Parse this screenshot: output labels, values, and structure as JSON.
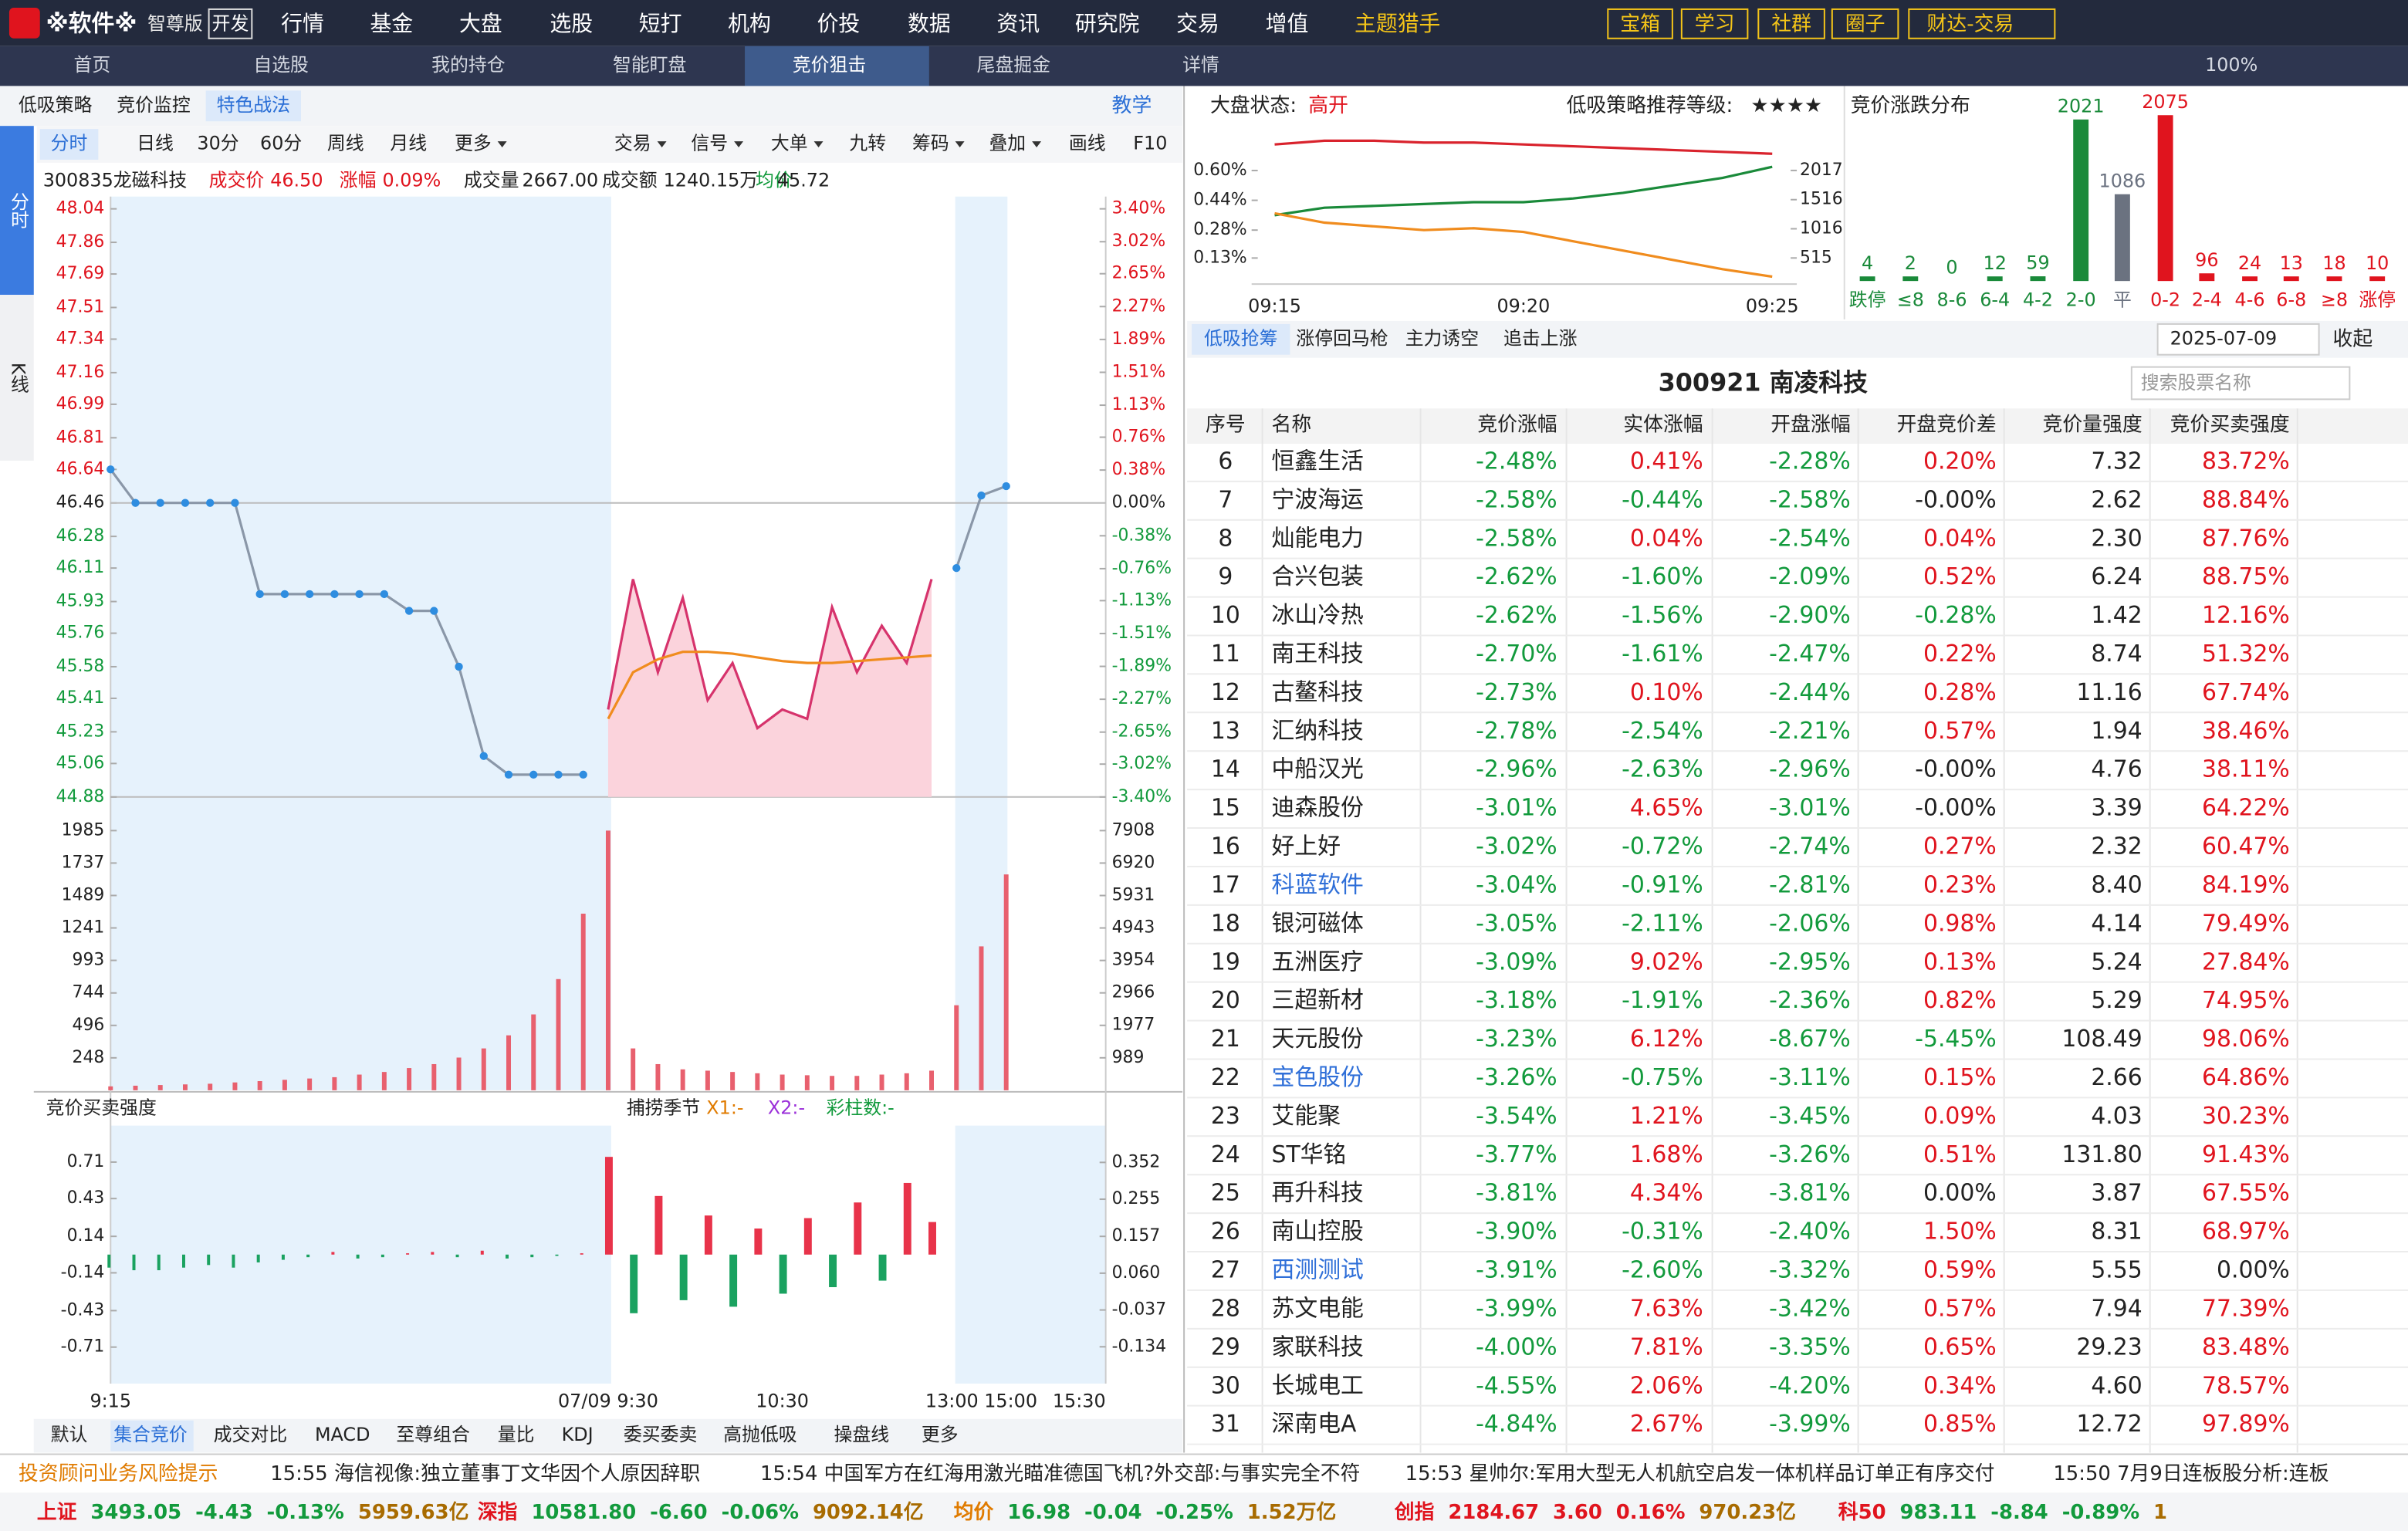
{
  "menu": {
    "logo": "※软件※",
    "edition": "智尊版",
    "mode": "开发",
    "items": [
      "行情",
      "基金",
      "大盘",
      "选股",
      "短打",
      "机构",
      "价投",
      "数据",
      "资讯",
      "研究院",
      "交易",
      "增值",
      "主题猎手"
    ],
    "tools": [
      "宝箱",
      "学习",
      "社群",
      "圈子",
      "财达-交易"
    ]
  },
  "tabs": {
    "items": [
      "首页",
      "自选股",
      "我的持仓",
      "智能盯盘",
      "竞价狙击",
      "尾盘掘金",
      "详情"
    ],
    "zoom": "100%"
  },
  "left": {
    "subtabs": [
      "低吸策略",
      "竞价监控",
      "特色战法"
    ],
    "teach": "教学",
    "side": [
      "分时",
      "K线"
    ],
    "periods": [
      "分时",
      "日线",
      "30分",
      "60分",
      "周线",
      "月线",
      "更多"
    ],
    "tools": [
      "交易",
      "信号",
      "大单",
      "九转",
      "筹码",
      "叠加",
      "画线",
      "F10"
    ],
    "quote": {
      "code_name": "300835龙磁科技",
      "price_label": "成交价",
      "price": "46.50",
      "chg_label": "涨幅",
      "chg": "0.09%",
      "vol_label": "成交量",
      "vol": "2667.00",
      "amt_label": "成交额",
      "amt": "1240.15万",
      "avg_label": "均价",
      "avg": "45.72"
    },
    "indicator_tabs": [
      "默认",
      "集合竞价",
      "成交对比",
      "MACD",
      "至尊组合",
      "量比",
      "KDJ",
      "委买委卖",
      "高抛低吸",
      "操盘线",
      "更多"
    ]
  },
  "chart_data": [
    {
      "type": "line",
      "categories": [
        "9:15",
        null,
        null,
        null,
        null,
        null,
        null,
        null,
        null,
        null,
        null,
        null,
        null,
        null,
        null,
        null,
        null,
        null,
        null,
        null,
        "07/09 9:30",
        null,
        null,
        null,
        null,
        null,
        null,
        "10:30",
        null,
        null,
        null,
        null,
        null,
        null,
        null,
        "13:00 15:00",
        null,
        null,
        null,
        null,
        "15:30"
      ],
      "series": [
        {
          "name": "集合竞价",
          "color": "#2e8de0",
          "values": [
            46.64,
            46.46,
            46.46,
            46.46,
            46.46,
            46.46,
            45.97,
            45.97,
            45.97,
            45.97,
            45.97,
            45.97,
            45.88,
            45.88,
            45.58,
            45.1,
            45.0,
            45.0,
            45.0,
            45.0,
            null,
            null,
            null,
            null,
            null,
            null,
            null,
            null,
            null,
            null,
            null,
            null,
            null,
            null,
            46.11,
            46.5,
            46.55,
            null,
            null,
            null,
            null
          ]
        },
        {
          "name": "价格",
          "color": "#d6336c",
          "values": [
            null,
            null,
            null,
            null,
            null,
            null,
            null,
            null,
            null,
            null,
            null,
            null,
            null,
            null,
            null,
            null,
            null,
            null,
            null,
            null,
            45.35,
            46.05,
            45.55,
            45.95,
            45.4,
            45.6,
            45.25,
            45.35,
            45.3,
            45.9,
            45.55,
            45.8,
            45.6,
            46.05,
            null,
            null,
            null,
            null,
            null,
            null,
            null
          ]
        },
        {
          "name": "均价",
          "color": "#f08c1e",
          "values": [
            null,
            null,
            null,
            null,
            null,
            null,
            null,
            null,
            null,
            null,
            null,
            null,
            null,
            null,
            null,
            null,
            null,
            null,
            null,
            null,
            45.3,
            45.55,
            45.62,
            45.66,
            45.66,
            45.65,
            45.63,
            45.61,
            45.6,
            45.6,
            45.61,
            45.62,
            45.63,
            45.64,
            null,
            null,
            null,
            null,
            null,
            null,
            null
          ]
        }
      ],
      "ylim": [
        44.88,
        48.04
      ],
      "yticks": [
        48.04,
        47.86,
        47.69,
        47.51,
        47.34,
        47.16,
        46.99,
        46.81,
        46.64,
        46.46,
        46.28,
        46.11,
        45.93,
        45.76,
        45.58,
        45.41,
        45.23,
        45.06,
        44.88
      ],
      "y2lim": [
        -3.4,
        3.4
      ],
      "y2ticks": [
        {
          "value": 3.4,
          "label": "3.40%"
        },
        {
          "value": 3.02,
          "label": "3.02%"
        },
        {
          "value": 2.65,
          "label": "2.65%"
        },
        {
          "value": 2.27,
          "label": "2.27%"
        },
        {
          "value": 1.89,
          "label": "1.89%"
        },
        {
          "value": 1.51,
          "label": "1.51%"
        },
        {
          "value": 1.13,
          "label": "1.13%"
        },
        {
          "value": 0.76,
          "label": "0.76%"
        },
        {
          "value": 0.38,
          "label": "0.38%"
        },
        {
          "value": 0,
          "label": "0.00%"
        },
        {
          "value": -0.38,
          "label": "-0.38%"
        },
        {
          "value": -0.76,
          "label": "-0.76%"
        },
        {
          "value": -1.13,
          "label": "-1.13%"
        },
        {
          "value": -1.51,
          "label": "-1.51%"
        },
        {
          "value": -1.89,
          "label": "-1.89%"
        },
        {
          "value": -2.27,
          "label": "-2.27%"
        },
        {
          "value": -2.65,
          "label": "-2.65%"
        },
        {
          "value": -3.02,
          "label": "-3.02%"
        },
        {
          "value": -3.4,
          "label": "-3.40%"
        }
      ],
      "volume": {
        "color": "#e8606e",
        "ylim": [
          0,
          2242
        ],
        "yticks": [
          1985,
          1737,
          1489,
          1241,
          993,
          744,
          496,
          248
        ],
        "y2lim": [
          0,
          8932
        ],
        "y2ticks": [
          7908,
          6920,
          5931,
          4943,
          3954,
          2966,
          1977,
          989
        ],
        "values": [
          30,
          35,
          40,
          45,
          50,
          60,
          70,
          80,
          90,
          100,
          120,
          140,
          170,
          200,
          250,
          320,
          420,
          580,
          850,
          1350,
          1985,
          320,
          200,
          160,
          150,
          140,
          130,
          120,
          115,
          110,
          110,
          120,
          130,
          150,
          650,
          1100,
          1650,
          null,
          null,
          null,
          null
        ]
      },
      "indicator": {
        "title": "竞价买卖强度",
        "annotations": [
          "捕捞季节",
          "X1:-",
          "X2:-",
          "彩柱数:-"
        ],
        "up_color": "#e8334a",
        "down_color": "#1aa260",
        "ylim": [
          -0.99,
          0.99
        ],
        "yticks": [
          0.71,
          0.43,
          0.14,
          -0.14,
          -0.43,
          -0.71
        ],
        "y2lim": [
          -0.231,
          0.449
        ],
        "y2ticks": [
          0.352,
          0.255,
          0.157,
          {
            "value": 0.06,
            "label": "0.060"
          },
          -0.037,
          -0.134
        ],
        "values": [
          -0.1,
          -0.12,
          -0.12,
          -0.1,
          -0.08,
          -0.1,
          -0.06,
          -0.04,
          -0.02,
          0.02,
          -0.03,
          -0.02,
          0.01,
          0.02,
          -0.02,
          0.03,
          -0.03,
          -0.02,
          -0.01,
          0.01,
          0.75,
          -0.45,
          0.45,
          -0.35,
          0.3,
          -0.4,
          0.2,
          -0.3,
          0.28,
          -0.25,
          0.4,
          -0.2,
          0.55,
          0.25,
          null,
          null,
          null,
          null,
          null,
          null,
          null
        ]
      }
    },
    {
      "type": "line",
      "state_label": "大盘状态:",
      "state": "高开",
      "grade_label": "低吸策略推荐等级:",
      "grade": "★★★★",
      "categories": [
        "09:15",
        null,
        null,
        null,
        null,
        "09:20",
        null,
        null,
        null,
        null,
        "09:25"
      ],
      "series": [
        {
          "color": "#d9232d",
          "values": [
            0.74,
            0.76,
            0.76,
            0.75,
            0.75,
            0.74,
            0.73,
            0.72,
            0.71,
            0.7,
            0.69
          ]
        },
        {
          "color": "#1a8a3a",
          "values": [
            0.36,
            0.4,
            0.41,
            0.42,
            0.43,
            0.43,
            0.45,
            0.48,
            0.52,
            0.56,
            0.62
          ]
        },
        {
          "color": "#f08c1e",
          "values": [
            0.37,
            0.32,
            0.3,
            0.28,
            0.29,
            0.27,
            0.22,
            0.17,
            0.12,
            0.07,
            0.03
          ]
        }
      ],
      "ylim": [
        -0.01,
        0.79
      ],
      "yticks": [
        {
          "value": 0.6,
          "label": "0.60%"
        },
        {
          "value": 0.44,
          "label": "0.44%"
        },
        {
          "value": 0.28,
          "label": "0.28%"
        },
        {
          "value": 0.13,
          "label": "0.13%"
        }
      ],
      "y2lim": [
        67,
        2623
      ],
      "y2ticks": [
        2017,
        1516,
        1016,
        515
      ]
    },
    {
      "type": "bar",
      "title": "竞价涨跌分布",
      "categories": [
        "跌停",
        "≤8",
        "8-6",
        "6-4",
        "4-2",
        "2-0",
        "平",
        "0-2",
        "2-4",
        "4-6",
        "6-8",
        "≥8",
        "涨停"
      ],
      "values": [
        4,
        2,
        0,
        12,
        59,
        2021,
        1086,
        2075,
        96,
        24,
        13,
        18,
        10
      ],
      "colors": [
        "#1a8a3a",
        "#1a8a3a",
        "#1a8a3a",
        "#1a8a3a",
        "#1a8a3a",
        "#1a8a3a",
        "#6b7280",
        "#e0141e",
        "#e0141e",
        "#e0141e",
        "#e0141e",
        "#e0141e",
        "#e0141e"
      ]
    }
  ],
  "right": {
    "tabs": [
      "低吸抢筹",
      "涨停回马枪",
      "主力诱空",
      "追击上涨"
    ],
    "date": "2025-07-09",
    "collapse": "收起",
    "title": "300921 南凌科技",
    "search": "搜索股票名称",
    "table": {
      "link_color": "#2f6fd8",
      "header": [
        "序号",
        "名称",
        "竞价涨幅",
        "实体涨幅",
        "开盘涨幅",
        "开盘竞价差",
        "竞价量强度",
        "竞价买卖强度"
      ],
      "rows": [
        {
          "cells": [
            "6",
            "恒鑫生活",
            "-2.48%",
            "0.41%",
            "-2.28%",
            "0.20%",
            "7.32",
            "83.72%"
          ]
        },
        {
          "cells": [
            "7",
            "宁波海运",
            "-2.58%",
            "-0.44%",
            "-2.58%",
            "-0.00%",
            "2.62",
            "88.84%"
          ]
        },
        {
          "cells": [
            "8",
            "灿能电力",
            "-2.58%",
            "0.04%",
            "-2.54%",
            "0.04%",
            "2.30",
            "87.76%"
          ]
        },
        {
          "cells": [
            "9",
            "合兴包装",
            "-2.62%",
            "-1.60%",
            "-2.09%",
            "0.52%",
            "6.24",
            "88.75%"
          ]
        },
        {
          "cells": [
            "10",
            "冰山冷热",
            "-2.62%",
            "-1.56%",
            "-2.90%",
            "-0.28%",
            "1.42",
            "12.16%"
          ]
        },
        {
          "cells": [
            "11",
            "南王科技",
            "-2.70%",
            "-1.61%",
            "-2.47%",
            "0.22%",
            "8.74",
            "51.32%"
          ]
        },
        {
          "cells": [
            "12",
            "古鳌科技",
            "-2.73%",
            "0.10%",
            "-2.44%",
            "0.28%",
            "11.16",
            "67.74%"
          ]
        },
        {
          "cells": [
            "13",
            "汇纳科技",
            "-2.78%",
            "-2.54%",
            "-2.21%",
            "0.57%",
            "1.94",
            "38.46%"
          ]
        },
        {
          "cells": [
            "14",
            "中船汉光",
            "-2.96%",
            "-2.63%",
            "-2.96%",
            "-0.00%",
            "4.76",
            "38.11%"
          ]
        },
        {
          "cells": [
            "15",
            "迪森股份",
            "-3.01%",
            "4.65%",
            "-3.01%",
            "-0.00%",
            "3.39",
            "64.22%"
          ]
        },
        {
          "cells": [
            "16",
            "好上好",
            "-3.02%",
            "-0.72%",
            "-2.74%",
            "0.27%",
            "2.32",
            "60.47%"
          ]
        },
        {
          "cells": [
            "17",
            "科蓝软件",
            "-3.04%",
            "-0.91%",
            "-2.81%",
            "0.23%",
            "8.40",
            "84.19%"
          ],
          "link": true
        },
        {
          "cells": [
            "18",
            "银河磁体",
            "-3.05%",
            "-2.11%",
            "-2.06%",
            "0.98%",
            "4.14",
            "79.49%"
          ]
        },
        {
          "cells": [
            "19",
            "五洲医疗",
            "-3.09%",
            "9.02%",
            "-2.95%",
            "0.13%",
            "5.24",
            "27.84%"
          ]
        },
        {
          "cells": [
            "20",
            "三超新材",
            "-3.18%",
            "-1.91%",
            "-2.36%",
            "0.82%",
            "5.29",
            "74.95%"
          ]
        },
        {
          "cells": [
            "21",
            "天元股份",
            "-3.23%",
            "6.12%",
            "-8.67%",
            "-5.45%",
            "108.49",
            "98.06%"
          ]
        },
        {
          "cells": [
            "22",
            "宝色股份",
            "-3.26%",
            "-0.75%",
            "-3.11%",
            "0.15%",
            "2.66",
            "64.86%"
          ],
          "link": true
        },
        {
          "cells": [
            "23",
            "艾能聚",
            "-3.54%",
            "1.21%",
            "-3.45%",
            "0.09%",
            "4.03",
            "30.23%"
          ]
        },
        {
          "cells": [
            "24",
            "ST华铭",
            "-3.77%",
            "1.68%",
            "-3.26%",
            "0.51%",
            "131.80",
            "91.43%"
          ]
        },
        {
          "cells": [
            "25",
            "再升科技",
            "-3.81%",
            "4.34%",
            "-3.81%",
            "0.00%",
            "3.87",
            "67.55%"
          ]
        },
        {
          "cells": [
            "26",
            "南山控股",
            "-3.90%",
            "-0.31%",
            "-2.40%",
            "1.50%",
            "8.31",
            "68.97%"
          ]
        },
        {
          "cells": [
            "27",
            "西测测试",
            "-3.91%",
            "-2.60%",
            "-3.32%",
            "0.59%",
            "5.55",
            "0.00%"
          ],
          "link": true
        },
        {
          "cells": [
            "28",
            "苏文电能",
            "-3.99%",
            "7.63%",
            "-3.42%",
            "0.57%",
            "7.94",
            "77.39%"
          ]
        },
        {
          "cells": [
            "29",
            "家联科技",
            "-4.00%",
            "7.81%",
            "-3.35%",
            "0.65%",
            "29.23",
            "83.48%"
          ]
        },
        {
          "cells": [
            "30",
            "长城电工",
            "-4.55%",
            "2.06%",
            "-4.20%",
            "0.34%",
            "4.60",
            "78.57%"
          ]
        },
        {
          "cells": [
            "31",
            "深南电A",
            "-4.84%",
            "2.67%",
            "-3.99%",
            "0.85%",
            "12.72",
            "97.89%"
          ]
        }
      ]
    }
  },
  "news": {
    "notice": "投资顾问业务风险提示",
    "items": [
      "15:55 海信视像:独立董事丁文华因个人原因辞职",
      "15:54 中国军方在红海用激光瞄准德国飞机?外交部:与事实完全不符",
      "15:53 星帅尔:军用大型无人机航空启发一体机样品订单正有序交付",
      "15:50 7月9日连板股分析:连板"
    ]
  },
  "indices": [
    {
      "name": "上证",
      "price": "3493.05",
      "change": "-4.43",
      "pct": "-0.13%",
      "amount": "5959.63亿"
    },
    {
      "name": "深指",
      "price": "10581.80",
      "change": "-6.60",
      "pct": "-0.06%",
      "amount": "9092.14亿"
    },
    {
      "name": "均价",
      "price": "16.98",
      "change": "-0.04",
      "pct": "-0.25%",
      "amount": "1.52万亿"
    },
    {
      "name": "创指",
      "price": "2184.67",
      "change": "3.60",
      "pct": "0.16%",
      "amount": "970.23亿"
    },
    {
      "name": "科50",
      "price": "983.11",
      "change": "-8.84",
      "pct": "-0.89%",
      "amount": "1"
    }
  ]
}
